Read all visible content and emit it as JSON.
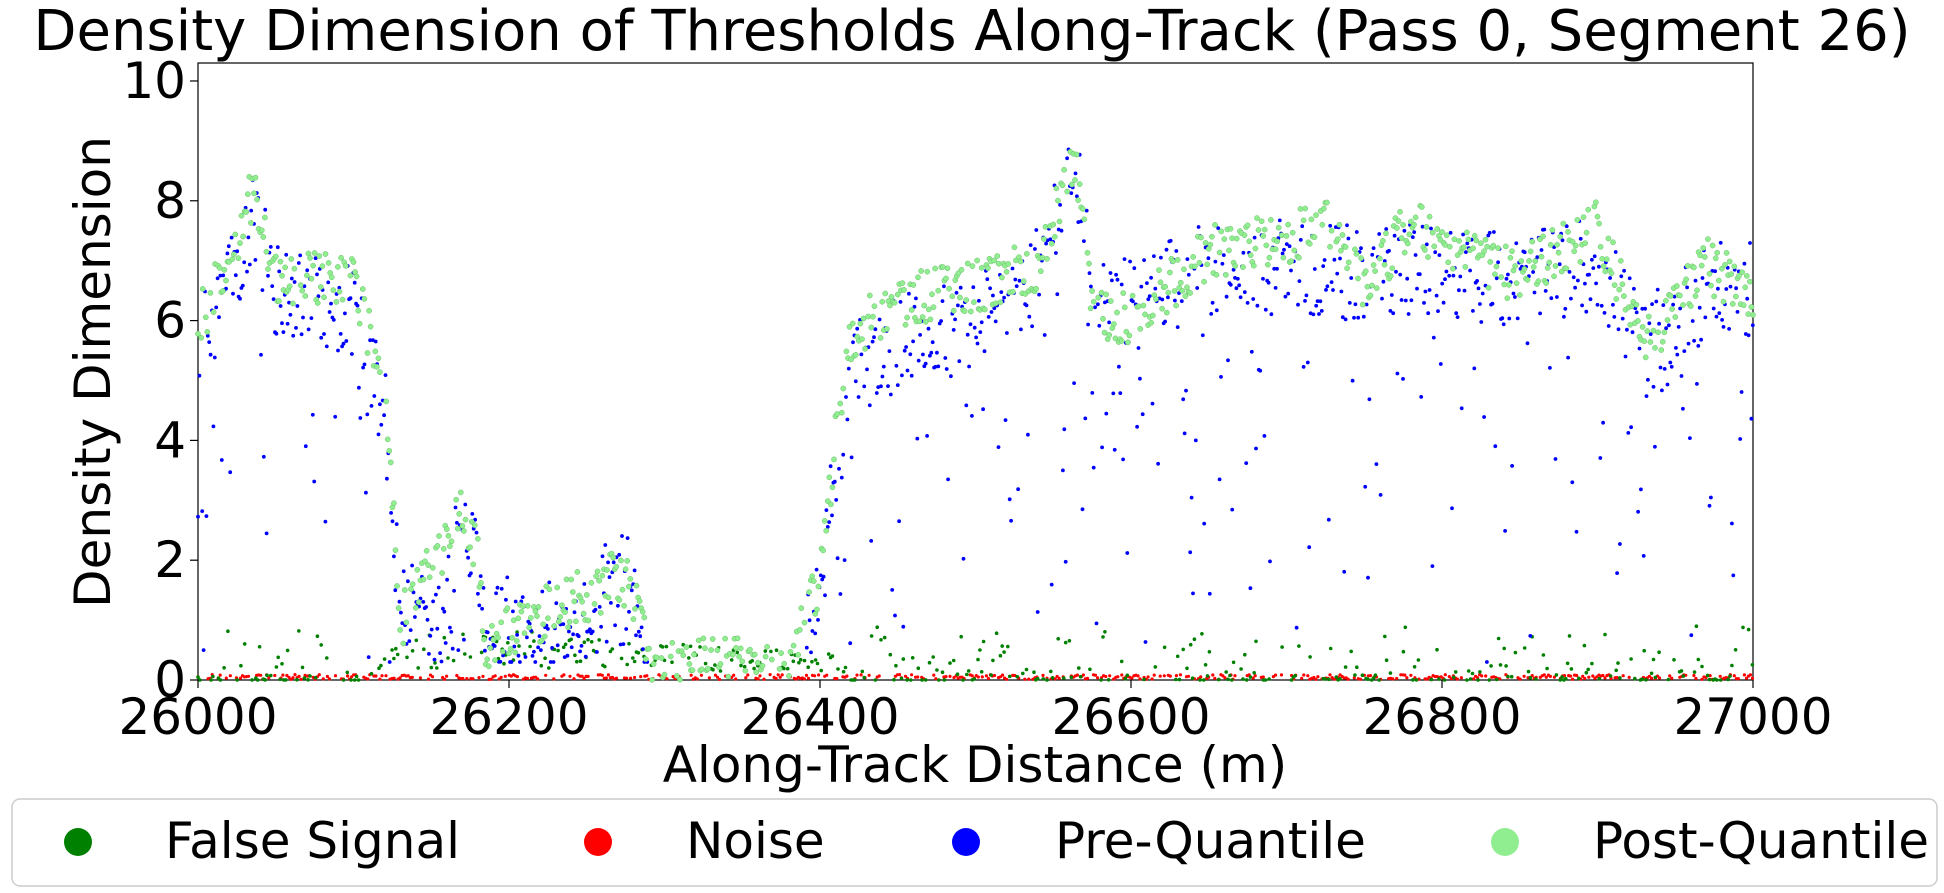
{
  "chart_data": {
    "type": "scatter",
    "title": "Density Dimension of Thresholds Along-Track (Pass 0, Segment 26)",
    "xlabel": "Along-Track Distance (m)",
    "ylabel": "Density Dimension",
    "xlim": [
      26000,
      27000
    ],
    "ylim": [
      0,
      10.3
    ],
    "xticks": [
      "26000",
      "26200",
      "26400",
      "26600",
      "26800",
      "27000"
    ],
    "yticks": [
      "0",
      "2",
      "4",
      "6",
      "8",
      "10"
    ],
    "grid": false,
    "legend_position": "bottom",
    "series": [
      {
        "name": "False Signal",
        "color": "#008000",
        "description": "low-density points scattered along the track",
        "profile": [
          [
            26000,
            0.15
          ],
          [
            26100,
            0.1
          ],
          [
            26130,
            0.6
          ],
          [
            26200,
            0.7
          ],
          [
            26260,
            0.6
          ],
          [
            26330,
            0.5
          ],
          [
            26400,
            0.4
          ],
          [
            26450,
            0.1
          ],
          [
            26600,
            0.1
          ],
          [
            26800,
            0.12
          ],
          [
            27000,
            0.1
          ]
        ]
      },
      {
        "name": "Noise",
        "color": "#ff0000",
        "description": "near-zero points along the baseline",
        "profile": [
          [
            26000,
            0.05
          ],
          [
            27000,
            0.05
          ]
        ]
      },
      {
        "name": "Pre-Quantile",
        "color": "#0000ff",
        "description": "density dimension before quantile filtering",
        "profile": [
          [
            26000,
            5.5
          ],
          [
            26020,
            6.5
          ],
          [
            26035,
            7.8
          ],
          [
            26050,
            6.5
          ],
          [
            26100,
            6.2
          ],
          [
            26120,
            4.5
          ],
          [
            26130,
            1.4
          ],
          [
            26160,
            1.2
          ],
          [
            26170,
            2.8
          ],
          [
            26180,
            2.2
          ],
          [
            26185,
            1.0
          ],
          [
            26250,
            0.9
          ],
          [
            26265,
            1.7
          ],
          [
            26280,
            1.6
          ],
          [
            26290,
            0.5
          ],
          [
            26390,
            0.5
          ],
          [
            26402,
            2.0
          ],
          [
            26410,
            3.4
          ],
          [
            26420,
            5.2
          ],
          [
            26450,
            5.6
          ],
          [
            26500,
            6.0
          ],
          [
            26540,
            6.8
          ],
          [
            26565,
            8.5
          ],
          [
            26575,
            6.4
          ],
          [
            26600,
            6.2
          ],
          [
            26650,
            6.9
          ],
          [
            26700,
            6.9
          ],
          [
            26750,
            6.8
          ],
          [
            26800,
            6.9
          ],
          [
            26850,
            6.6
          ],
          [
            26900,
            7.0
          ],
          [
            26930,
            5.5
          ],
          [
            26970,
            6.5
          ],
          [
            27000,
            6.5
          ]
        ]
      },
      {
        "name": "Post-Quantile",
        "color": "#90ee90",
        "description": "upper envelope of density dimension after quantile filtering",
        "profile": [
          [
            26000,
            6.4
          ],
          [
            26020,
            7.4
          ],
          [
            26035,
            8.6
          ],
          [
            26050,
            7.2
          ],
          [
            26100,
            7.1
          ],
          [
            26120,
            5.3
          ],
          [
            26125,
            3.6
          ],
          [
            26130,
            1.4
          ],
          [
            26165,
            3.0
          ],
          [
            26172,
            3.3
          ],
          [
            26180,
            2.5
          ],
          [
            26185,
            1.1
          ],
          [
            26260,
            2.0
          ],
          [
            26268,
            2.3
          ],
          [
            26280,
            1.9
          ],
          [
            26290,
            0.7
          ],
          [
            26380,
            0.7
          ],
          [
            26400,
            2.2
          ],
          [
            26410,
            4.5
          ],
          [
            26420,
            6.2
          ],
          [
            26450,
            6.8
          ],
          [
            26500,
            7.0
          ],
          [
            26540,
            7.4
          ],
          [
            26565,
            9.1
          ],
          [
            26575,
            6.6
          ],
          [
            26600,
            6.5
          ],
          [
            26650,
            7.6
          ],
          [
            26700,
            7.8
          ],
          [
            26730,
            8.1
          ],
          [
            26750,
            7.0
          ],
          [
            26780,
            8.1
          ],
          [
            26800,
            7.6
          ],
          [
            26850,
            7.2
          ],
          [
            26900,
            8.0
          ],
          [
            26930,
            6.0
          ],
          [
            26970,
            7.4
          ],
          [
            27000,
            6.8
          ]
        ]
      }
    ]
  }
}
